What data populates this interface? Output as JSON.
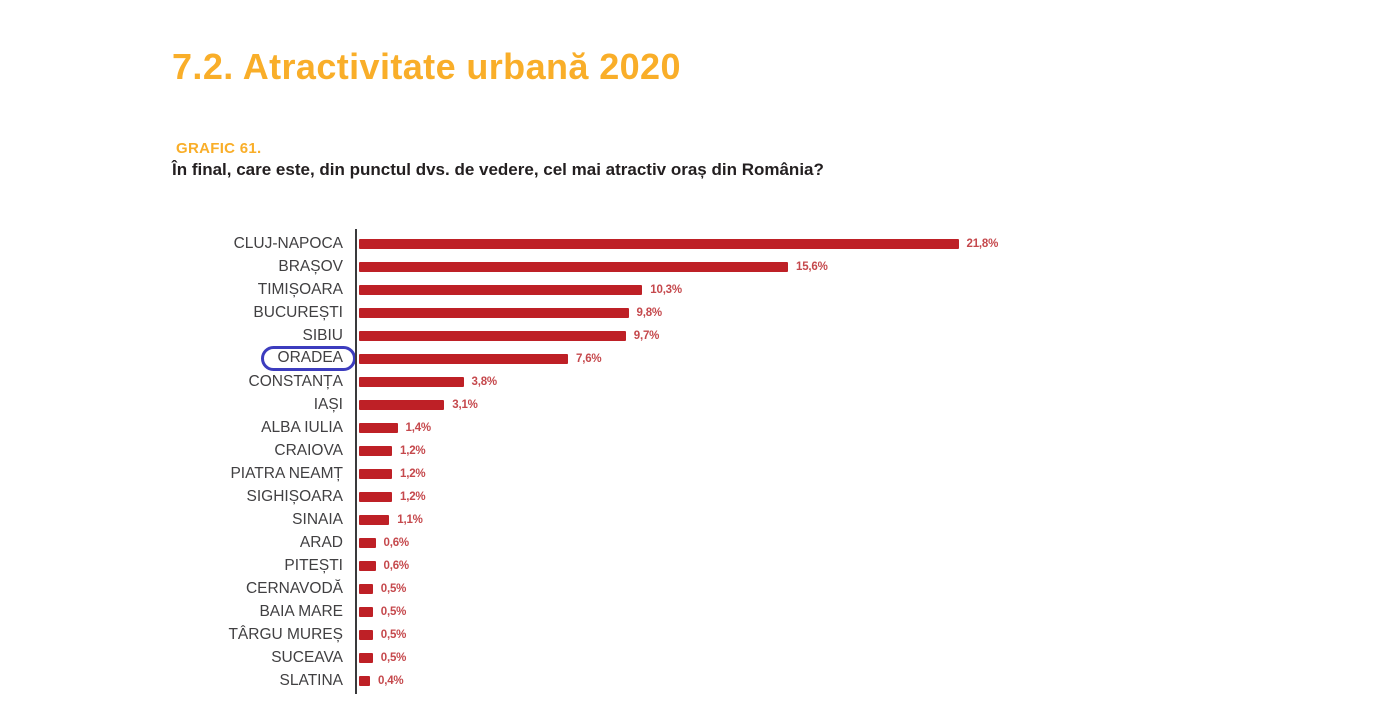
{
  "page": {
    "section_title": "7.2. Atractivitate urbană 2020",
    "chart_label": "GRAFIC 61.",
    "question": "În final, care este, din punctul dvs. de vedere, cel mai atractiv oraș din România?"
  },
  "colors": {
    "accent_orange": "#F9AE29",
    "bar_red": "#BE2026",
    "value_text_red": "#C5484C",
    "category_label_gray": "#414042",
    "axis_dark": "#3A3A3C",
    "highlight_blue": "#3C3CBE"
  },
  "annotation": {
    "type": "ellipse",
    "target_category": "ORADEA",
    "color": "#3C3CBE"
  },
  "chart_data": {
    "type": "bar",
    "orientation": "horizontal",
    "title": "În final, care este, din punctul dvs. de vedere, cel mai atractiv oraș din România?",
    "categories": [
      "CLUJ-NAPOCA",
      "BRAȘOV",
      "TIMIȘOARA",
      "BUCUREȘTI",
      "SIBIU",
      "ORADEA",
      "CONSTANȚA",
      "IAȘI",
      "ALBA IULIA",
      "CRAIOVA",
      "PIATRA NEAMȚ",
      "SIGHIȘOARA",
      "SINAIA",
      "ARAD",
      "PITEȘTI",
      "CERNAVODĂ",
      "BAIA MARE",
      "TÂRGU MUREȘ",
      "SUCEAVA",
      "SLATINA"
    ],
    "values": [
      21.8,
      15.6,
      10.3,
      9.8,
      9.7,
      7.6,
      3.8,
      3.1,
      1.4,
      1.2,
      1.2,
      1.2,
      1.1,
      0.6,
      0.6,
      0.5,
      0.5,
      0.5,
      0.5,
      0.4
    ],
    "value_labels": [
      "21,8%",
      "15,6%",
      "10,3%",
      "9,8%",
      "9,7%",
      "7,6%",
      "3,8%",
      "3,1%",
      "1,4%",
      "1,2%",
      "1,2%",
      "1,2%",
      "1,1%",
      "0,6%",
      "0,6%",
      "0,5%",
      "0,5%",
      "0,5%",
      "0,5%",
      "0,4%"
    ],
    "highlighted_category": "ORADEA",
    "xlim": [
      0,
      22
    ],
    "grid": false,
    "legend": false,
    "bar_color": "#BE2026"
  }
}
